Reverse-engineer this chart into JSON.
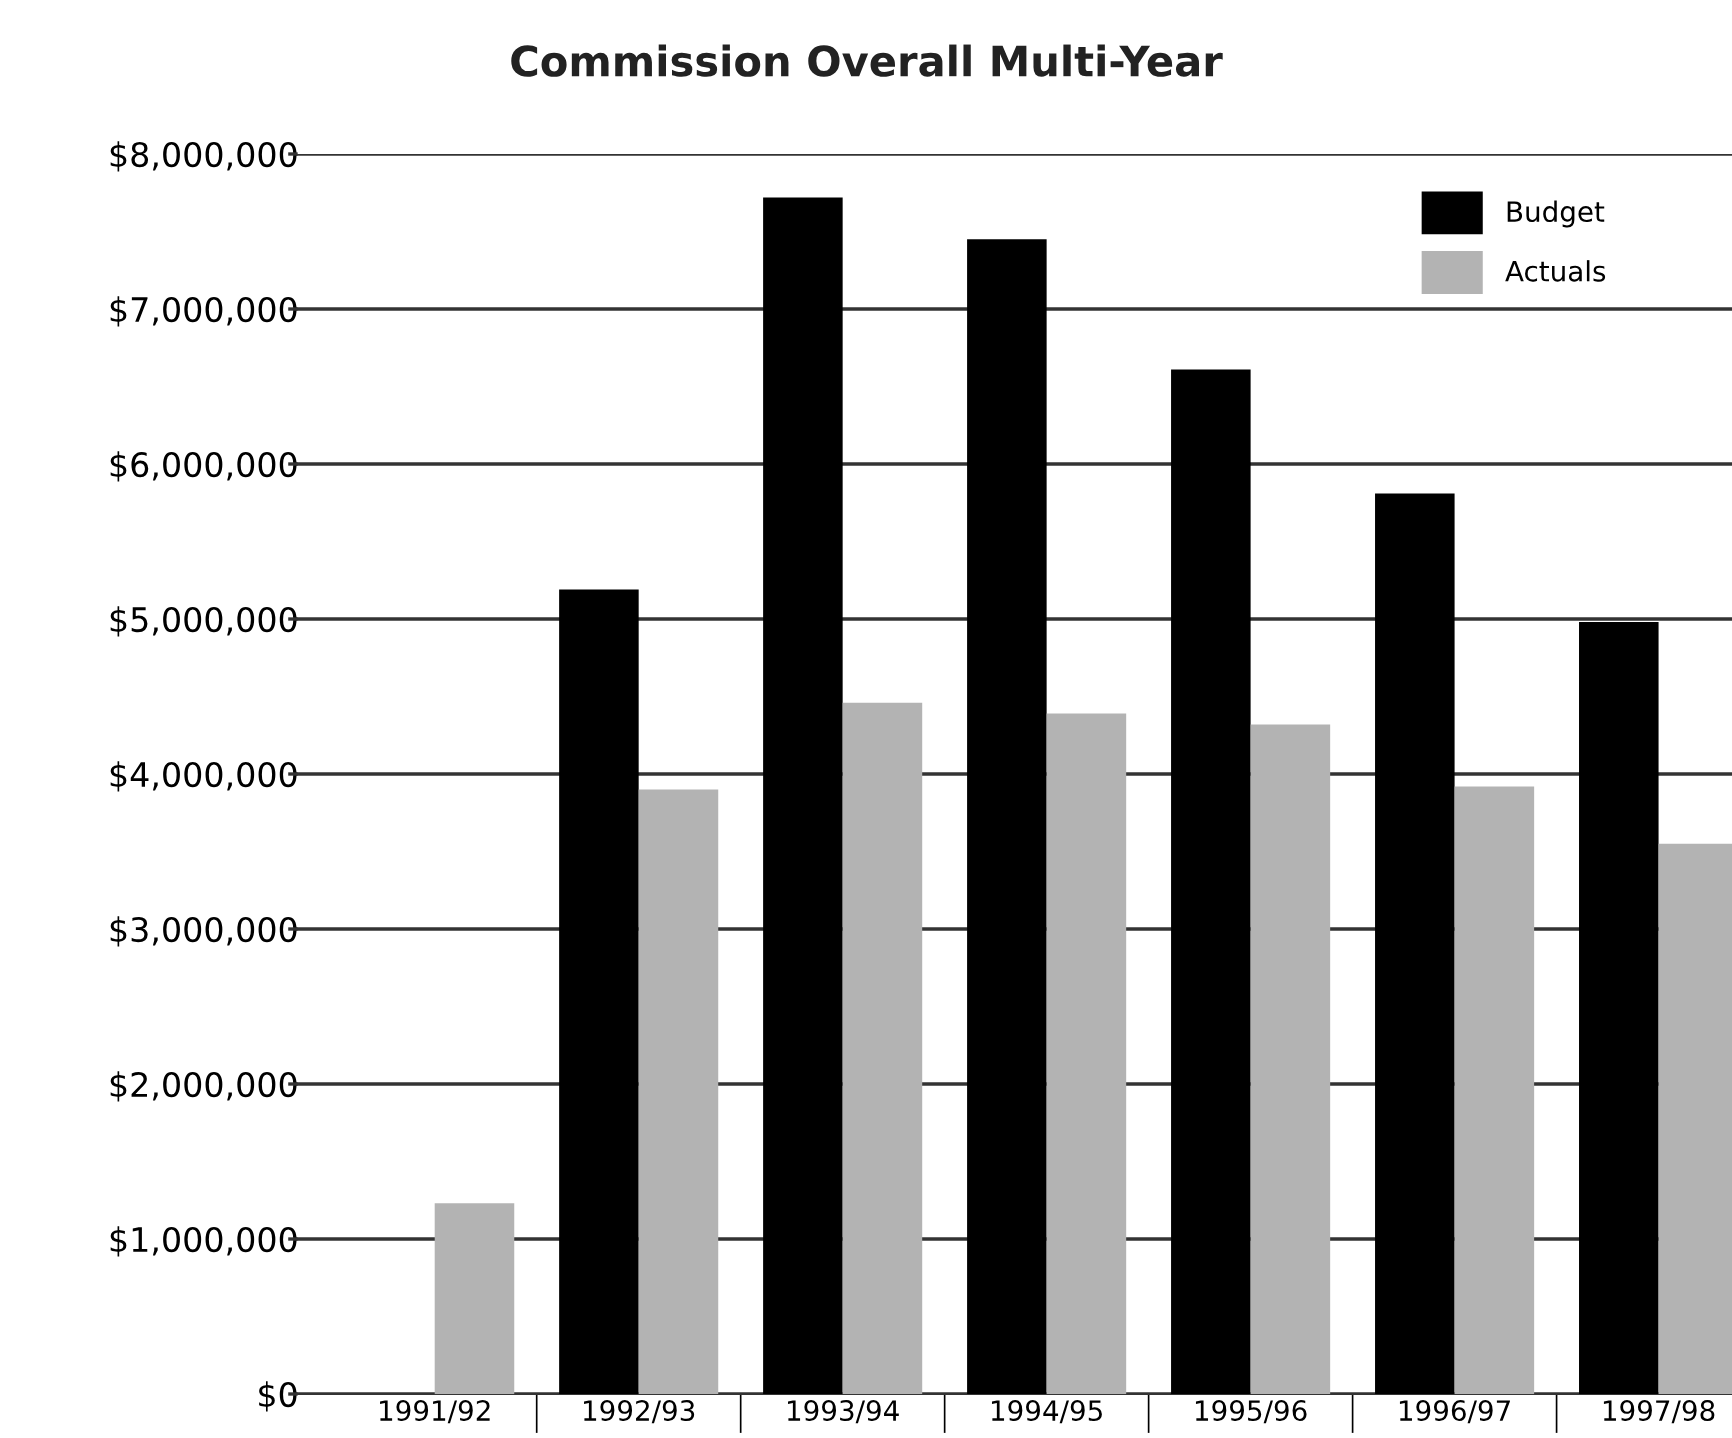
{
  "chart_data": {
    "type": "bar",
    "title": "Commission Overall Multi-Year",
    "categories": [
      "1991/92",
      "1992/93",
      "1993/94",
      "1994/95",
      "1995/96",
      "1996/97",
      "1997/98"
    ],
    "series": [
      {
        "name": "Budget",
        "color": "#000000",
        "values": [
          null,
          5190000,
          7720000,
          7450000,
          6610000,
          5810000,
          4980000
        ]
      },
      {
        "name": "Actuals",
        "color": "#b3b3b3",
        "values": [
          1230000,
          3900000,
          4460000,
          4390000,
          4320000,
          3920000,
          3550000
        ]
      }
    ],
    "ylim": [
      0,
      8000000
    ],
    "yticks": [
      {
        "value": 0,
        "label": "$0"
      },
      {
        "value": 1000000,
        "label": "$1,000,000"
      },
      {
        "value": 2000000,
        "label": "$2,000,000"
      },
      {
        "value": 3000000,
        "label": "$3,000,000"
      },
      {
        "value": 4000000,
        "label": "$4,000,000"
      },
      {
        "value": 5000000,
        "label": "$5,000,000"
      },
      {
        "value": 6000000,
        "label": "$6,000,000"
      },
      {
        "value": 7000000,
        "label": "$7,000,000"
      },
      {
        "value": 8000000,
        "label": "$8,000,000"
      }
    ],
    "grid": "y",
    "legend": "top right"
  }
}
